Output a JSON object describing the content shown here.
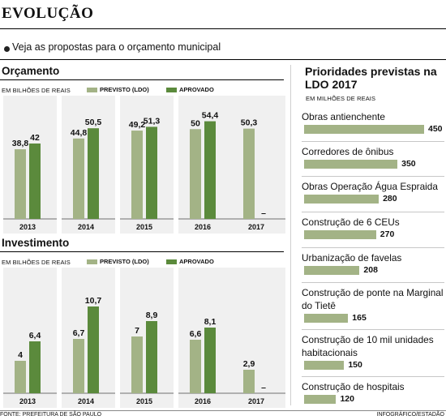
{
  "header": {
    "title": "EVOLUÇÃO",
    "subtitle": "Veja as propostas para o orçamento municipal"
  },
  "legend": {
    "previsto": "PREVISTO (LDO)",
    "aprovado": "APROVADO"
  },
  "colors": {
    "previsto": "#a3b386",
    "aprovado": "#5b8a3c"
  },
  "panels": {
    "orcamento": {
      "title": "Orçamento",
      "unit": "EM BILHÕES DE REAIS"
    },
    "investimento": {
      "title": "Investimento",
      "unit": "EM BILHÕES DE REAIS"
    },
    "prioridades": {
      "title": "Prioridades previstas na LDO 2017",
      "unit": "EM MILHÕES DE REAIS"
    }
  },
  "footer": {
    "source": "FONTE: PREFEITURA DE SÃO PAULO",
    "credit": "INFOGRÁFICO/ESTADÃO"
  },
  "chart_data": [
    {
      "type": "bar",
      "title": "Orçamento",
      "ylabel": "EM BILHÕES DE REAIS",
      "categories": [
        "2013",
        "2014",
        "2015",
        "2016",
        "2017"
      ],
      "series": [
        {
          "name": "PREVISTO (LDO)",
          "values": [
            38.8,
            44.8,
            49.2,
            50,
            50.3
          ],
          "labels": [
            "38,8",
            "44,8",
            "49,2",
            "50",
            "50,3"
          ]
        },
        {
          "name": "APROVADO",
          "values": [
            42,
            50.5,
            51.3,
            54.4,
            null
          ],
          "labels": [
            "42",
            "50,5",
            "51,3",
            "54,4",
            "–"
          ]
        }
      ],
      "ylim": [
        0,
        56
      ]
    },
    {
      "type": "bar",
      "title": "Investimento",
      "ylabel": "EM BILHÕES DE REAIS",
      "categories": [
        "2013",
        "2014",
        "2015",
        "2016",
        "2017"
      ],
      "series": [
        {
          "name": "PREVISTO (LDO)",
          "values": [
            4,
            6.7,
            7,
            6.6,
            2.9
          ],
          "labels": [
            "4",
            "6,7",
            "7",
            "6,6",
            "2,9"
          ]
        },
        {
          "name": "APROVADO",
          "values": [
            6.4,
            10.7,
            8.9,
            8.1,
            null
          ],
          "labels": [
            "6,4",
            "10,7",
            "8,9",
            "8,1",
            "–"
          ]
        }
      ],
      "ylim": [
        0,
        11.5
      ]
    },
    {
      "type": "bar",
      "orientation": "horizontal",
      "title": "Prioridades previstas na LDO 2017",
      "ylabel": "EM MILHÕES DE REAIS",
      "categories": [
        "Obras antienchente",
        "Corredores de ônibus",
        "Obras Operação Água Espraida",
        "Construção de 6 CEUs",
        "Urbanização de favelas",
        "Construção de ponte na Marginal do Tietê",
        "Construção de 10 mil unidades habitacionais",
        "Construção de hospitais"
      ],
      "values": [
        450,
        350,
        280,
        270,
        208,
        165,
        150,
        120
      ],
      "xlim": [
        0,
        450
      ]
    }
  ]
}
